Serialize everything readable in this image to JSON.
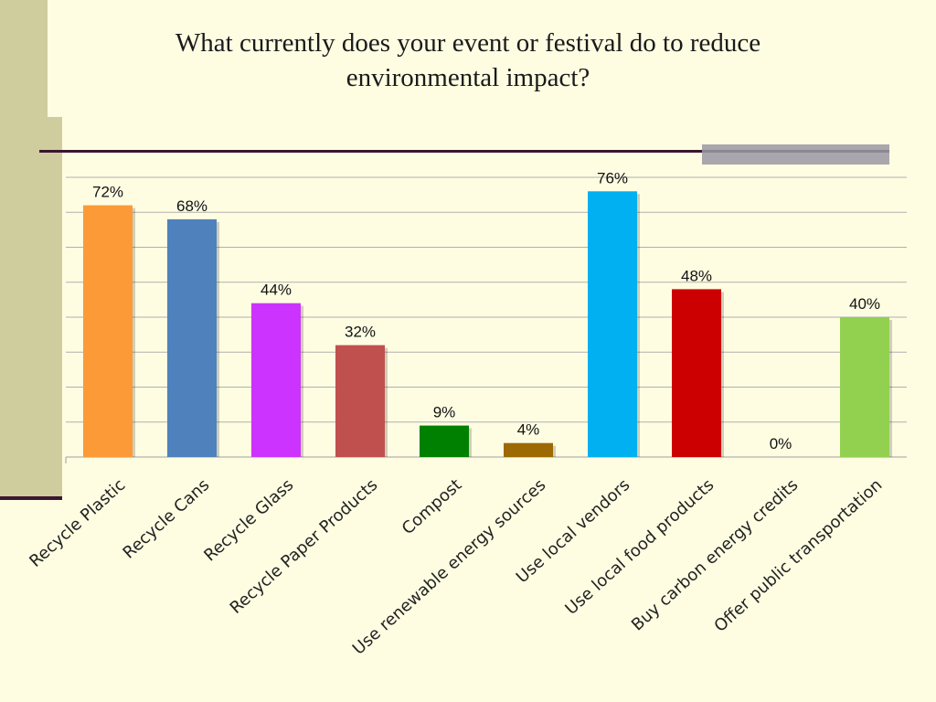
{
  "slide": {
    "title_line1": "What currently does your event or festival do to reduce",
    "title_line2": "environmental impact?"
  },
  "colors": {
    "background": "#fefde2",
    "accent_panel": "#cfcd9e",
    "rule_line": "#3a1530",
    "gridline": "#b0b0b0"
  },
  "chart_data": {
    "type": "bar",
    "title": "What currently does your event or festival do to reduce environmental impact?",
    "xlabel": "",
    "ylabel": "",
    "ylim": [
      0,
      80
    ],
    "grid": true,
    "legend": "none",
    "categories": [
      "Recycle Plastic",
      "Recycle Cans",
      "Recycle Glass",
      "Recycle Paper Products",
      "Compost",
      "Use renewable energy sources",
      "Use local vendors",
      "Use local food products",
      "Buy carbon energy credits",
      "Offer public transportation"
    ],
    "values": [
      72,
      68,
      44,
      32,
      9,
      4,
      76,
      48,
      0,
      40
    ],
    "data_labels": [
      "72%",
      "68%",
      "44%",
      "32%",
      "9%",
      "4%",
      "76%",
      "48%",
      "0%",
      "40%"
    ],
    "bar_colors": [
      "#fb9a36",
      "#4f81bd",
      "#cc33ff",
      "#c0504d",
      "#008000",
      "#9c6a00",
      "#00b0f0",
      "#cc0000",
      "#cccccc",
      "#92d050"
    ]
  }
}
